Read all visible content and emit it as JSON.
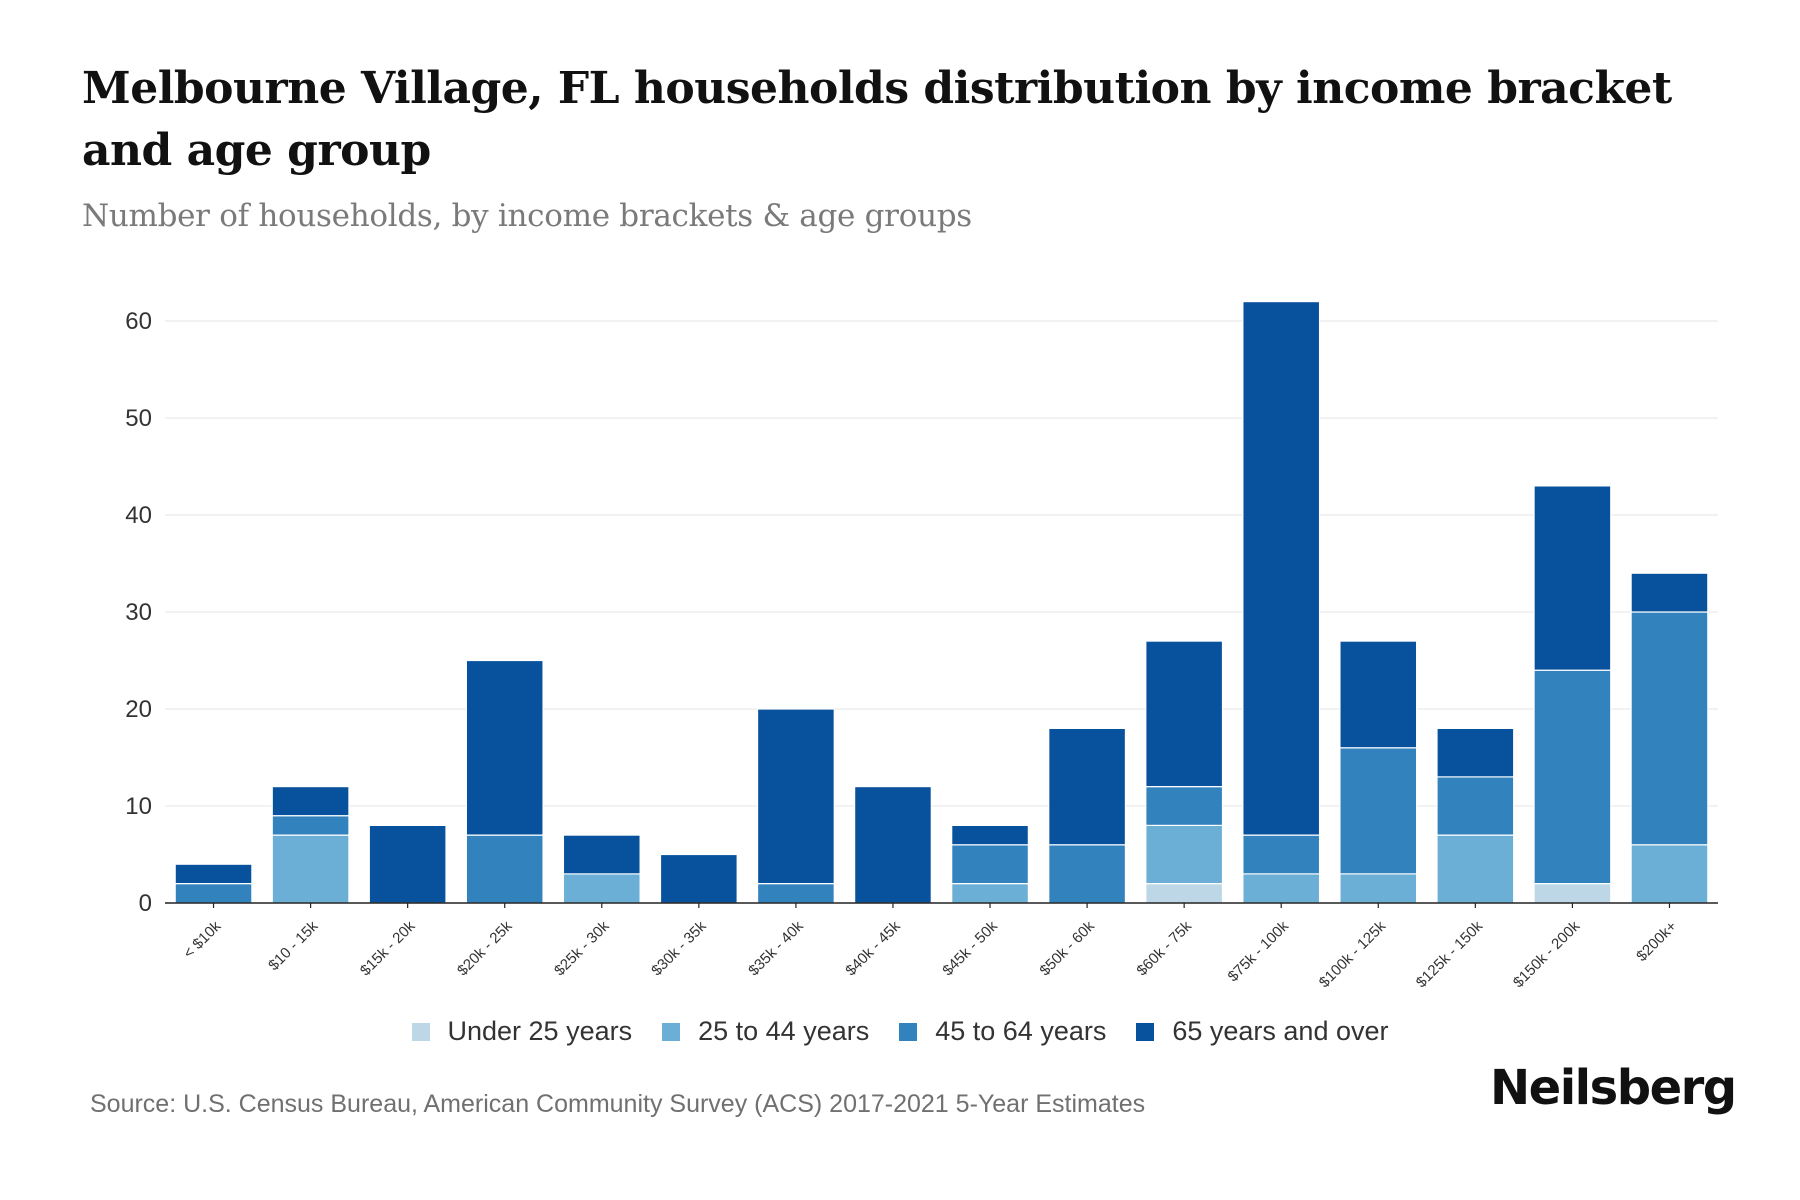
{
  "header": {
    "title": "Melbourne Village, FL households distribution by income bracket and age group",
    "subtitle": "Number of households, by income brackets & age groups"
  },
  "footer": {
    "source": "Source: U.S. Census Bureau, American Community Survey (ACS) 2017-2021 5-Year Estimates",
    "brand": "Neilsberg"
  },
  "chart_data": {
    "type": "bar",
    "stacked": true,
    "title": "Melbourne Village, FL households distribution by income bracket and age group",
    "subtitle": "Number of households, by income brackets & age groups",
    "xlabel": "",
    "ylabel": "",
    "ylim": [
      0,
      60
    ],
    "yticks": [
      0,
      10,
      20,
      30,
      40,
      50,
      60
    ],
    "grid": true,
    "legend_position": "bottom",
    "categories": [
      "< $10k",
      "$10 - 15k",
      "$15k - 20k",
      "$20k - 25k",
      "$25k - 30k",
      "$30k - 35k",
      "$35k - 40k",
      "$40k - 45k",
      "$45k - 50k",
      "$50k - 60k",
      "$60k - 75k",
      "$75k - 100k",
      "$100k - 125k",
      "$125k - 150k",
      "$150k - 200k",
      "$200k+"
    ],
    "series": [
      {
        "name": "Under 25 years",
        "color": "#bdd7e7",
        "values": [
          0,
          0,
          0,
          0,
          0,
          0,
          0,
          0,
          0,
          0,
          2,
          0,
          0,
          0,
          2,
          0
        ]
      },
      {
        "name": "25 to 44 years",
        "color": "#6baed6",
        "values": [
          0,
          7,
          0,
          0,
          3,
          0,
          0,
          0,
          2,
          0,
          6,
          3,
          3,
          7,
          0,
          6
        ]
      },
      {
        "name": "45 to 64 years",
        "color": "#3182bd",
        "values": [
          2,
          2,
          0,
          7,
          0,
          0,
          2,
          0,
          4,
          6,
          4,
          4,
          13,
          6,
          22,
          24
        ]
      },
      {
        "name": "65 years and over",
        "color": "#08519c",
        "values": [
          2,
          3,
          8,
          18,
          4,
          5,
          18,
          12,
          2,
          12,
          15,
          55,
          11,
          5,
          19,
          4
        ]
      }
    ]
  }
}
